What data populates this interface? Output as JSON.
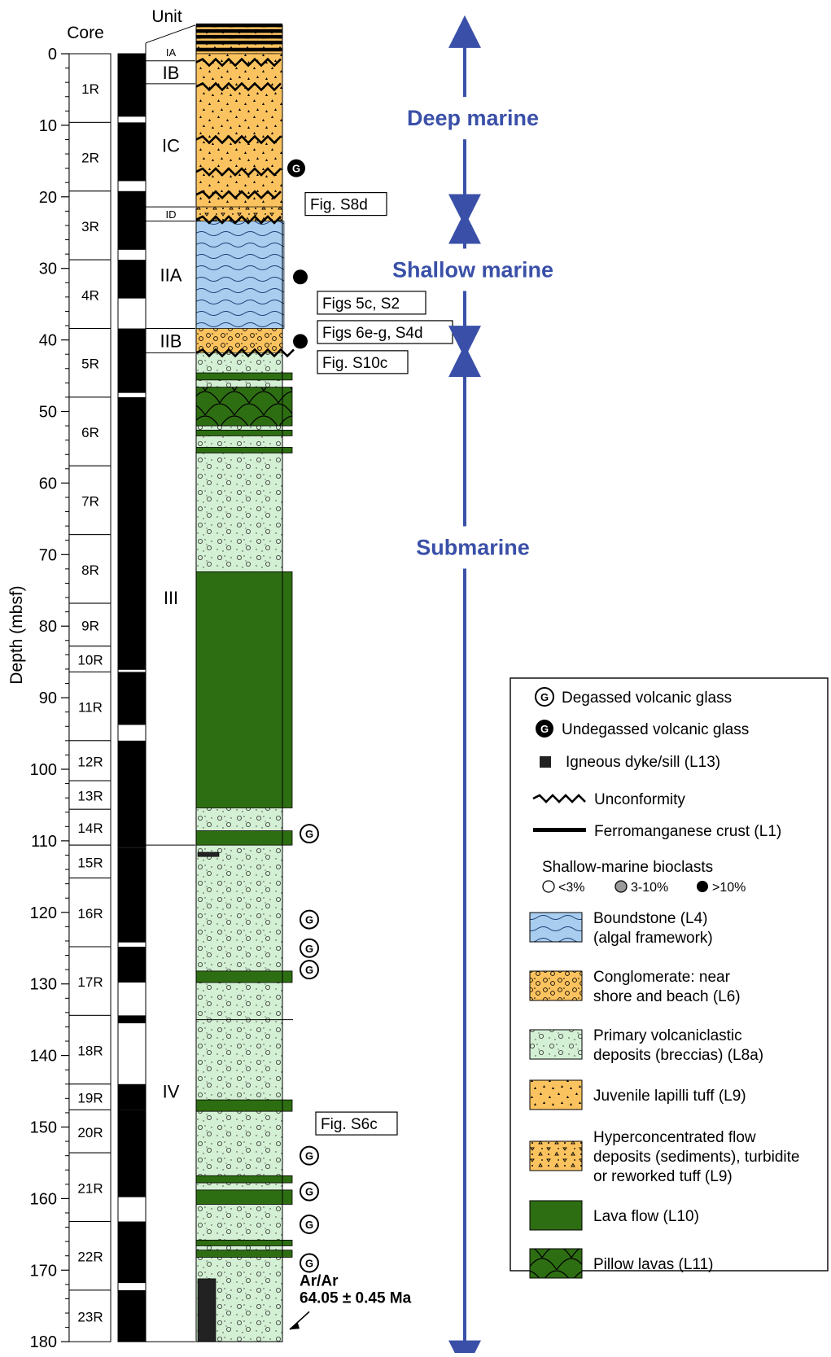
{
  "headers": {
    "core": "Core",
    "unit": "Unit",
    "depth_axis": "Depth (mbsf)"
  },
  "depth_ticks": [
    "0",
    "10",
    "20",
    "30",
    "40",
    "50",
    "60",
    "70",
    "80",
    "90",
    "100",
    "110",
    "120",
    "130",
    "140",
    "150",
    "160",
    "170",
    "180"
  ],
  "cores": [
    {
      "label": "1R",
      "top": 0,
      "bottom": 9.6
    },
    {
      "label": "2R",
      "top": 9.6,
      "bottom": 19.2
    },
    {
      "label": "3R",
      "top": 19.2,
      "bottom": 28.8
    },
    {
      "label": "4R",
      "top": 28.8,
      "bottom": 38.4
    },
    {
      "label": "5R",
      "top": 38.4,
      "bottom": 48
    },
    {
      "label": "6R",
      "top": 48,
      "bottom": 57.6
    },
    {
      "label": "7R",
      "top": 57.6,
      "bottom": 67.2
    },
    {
      "label": "8R",
      "top": 67.2,
      "bottom": 76.8
    },
    {
      "label": "9R",
      "top": 76.8,
      "bottom": 82.8
    },
    {
      "label": "10R",
      "top": 82.8,
      "bottom": 86.4
    },
    {
      "label": "11R",
      "top": 86.4,
      "bottom": 96
    },
    {
      "label": "12R",
      "top": 96,
      "bottom": 101.6
    },
    {
      "label": "13R",
      "top": 101.6,
      "bottom": 105.6
    },
    {
      "label": "14R",
      "top": 105.6,
      "bottom": 110.6
    },
    {
      "label": "15R",
      "top": 110.6,
      "bottom": 115.2
    },
    {
      "label": "16R",
      "top": 115.2,
      "bottom": 124.8
    },
    {
      "label": "17R",
      "top": 124.8,
      "bottom": 134.4
    },
    {
      "label": "18R",
      "top": 134.4,
      "bottom": 144
    },
    {
      "label": "19R",
      "top": 144,
      "bottom": 147.6
    },
    {
      "label": "20R",
      "top": 147.6,
      "bottom": 153.6
    },
    {
      "label": "21R",
      "top": 153.6,
      "bottom": 163.2
    },
    {
      "label": "22R",
      "top": 163.2,
      "bottom": 172.8
    },
    {
      "label": "23R",
      "top": 172.8,
      "bottom": 180
    }
  ],
  "recovery": [
    {
      "top": 0,
      "bottom": 8.8
    },
    {
      "top": 9.6,
      "bottom": 17.8
    },
    {
      "top": 19.2,
      "bottom": 27.4
    },
    {
      "top": 28.8,
      "bottom": 34.2
    },
    {
      "top": 38.4,
      "bottom": 47.4
    },
    {
      "top": 48,
      "bottom": 86.1
    },
    {
      "top": 86.4,
      "bottom": 93.8
    },
    {
      "top": 96,
      "bottom": 111
    },
    {
      "top": 111,
      "bottom": 124.2
    },
    {
      "top": 124.8,
      "bottom": 129.8
    },
    {
      "top": 134.4,
      "bottom": 135.5
    },
    {
      "top": 144,
      "bottom": 147.6
    },
    {
      "top": 147.6,
      "bottom": 159.8
    },
    {
      "top": 163.2,
      "bottom": 171.8
    },
    {
      "top": 172.8,
      "bottom": 180
    }
  ],
  "units": [
    {
      "label": "IA",
      "top": -1.5,
      "bottom": 1
    },
    {
      "label": "IB",
      "top": 1,
      "bottom": 4.2
    },
    {
      "label": "IC",
      "top": 4.2,
      "bottom": 21.4
    },
    {
      "label": "ID",
      "top": 21.4,
      "bottom": 23.4
    },
    {
      "label": "IIA",
      "top": 23.4,
      "bottom": 38.4
    },
    {
      "label": "IIB",
      "top": 38.4,
      "bottom": 41.8
    },
    {
      "label": "III",
      "top": 41.8,
      "bottom": 110.6
    },
    {
      "label": "IV",
      "top": 110.6,
      "bottom": 180
    }
  ],
  "lithology": [
    {
      "type": "hyper",
      "top": -4,
      "bottom": 0
    },
    {
      "type": "lapilli",
      "top": 0,
      "bottom": 21.4
    },
    {
      "type": "hyper",
      "top": 21.4,
      "bottom": 23.4
    },
    {
      "type": "boundstone",
      "top": 23.4,
      "bottom": 38.4
    },
    {
      "type": "conglomerate",
      "top": 38.4,
      "bottom": 41.8
    },
    {
      "type": "breccia",
      "top": 41.8,
      "bottom": 180
    },
    {
      "type": "lava",
      "top": 44.6,
      "bottom": 45.6
    },
    {
      "type": "pillow",
      "top": 46.6,
      "bottom": 52
    },
    {
      "type": "lava",
      "top": 52.6,
      "bottom": 53.4
    },
    {
      "type": "lava",
      "top": 55,
      "bottom": 55.8
    },
    {
      "type": "lava",
      "top": 72.4,
      "bottom": 105.4
    },
    {
      "type": "lava",
      "top": 108.6,
      "bottom": 110.6
    },
    {
      "type": "lava",
      "top": 128.2,
      "bottom": 129.8
    },
    {
      "type": "lava",
      "top": 146.2,
      "bottom": 147.8
    },
    {
      "type": "lava",
      "top": 156.8,
      "bottom": 157.8
    },
    {
      "type": "lava",
      "top": 158.8,
      "bottom": 160.8
    },
    {
      "type": "lava",
      "top": 165.8,
      "bottom": 166.6
    },
    {
      "type": "lava",
      "top": 167.2,
      "bottom": 168.2
    }
  ],
  "crusts": [
    -4,
    -3.2,
    -2.4,
    -1.6,
    -0.6
  ],
  "dykes": [
    {
      "top": 111.6,
      "bottom": 112.2
    },
    {
      "top": 171.2,
      "bottom": 180
    }
  ],
  "unconformities": [
    1.2,
    4.6,
    12,
    16.5,
    19.7,
    23.2,
    41.8
  ],
  "glass_markers": [
    {
      "depth": 16,
      "kind": "undegassed"
    },
    {
      "depth": 109,
      "kind": "degassed"
    },
    {
      "depth": 121,
      "kind": "degassed"
    },
    {
      "depth": 125,
      "kind": "degassed"
    },
    {
      "depth": 128,
      "kind": "degassed"
    },
    {
      "depth": 154,
      "kind": "degassed"
    },
    {
      "depth": 159,
      "kind": "degassed"
    },
    {
      "depth": 163.6,
      "kind": "degassed"
    },
    {
      "depth": 169,
      "kind": "degassed"
    }
  ],
  "bioclast_markers": [
    {
      "depth": 31.2,
      "level": ">10%"
    },
    {
      "depth": 40.2,
      "level": ">10%"
    }
  ],
  "figure_refs": [
    {
      "label": "Fig. S8d",
      "depth": 21
    },
    {
      "label": "Figs 5c, S2",
      "depth": 34.8
    },
    {
      "label": "Figs 6e-g, S4d",
      "depth": 38.9
    },
    {
      "label": "Fig. S10c",
      "depth": 43.1
    },
    {
      "label": "Fig. S6c",
      "depth": 149.5
    }
  ],
  "environments": [
    {
      "label": "Deep marine",
      "top": -4,
      "bottom": 22.8,
      "label_depth": 9
    },
    {
      "label": "Shallow marine",
      "top": 23.4,
      "bottom": 41.2,
      "label_depth": 30.2
    },
    {
      "label": "Submarine",
      "top": 42,
      "bottom": 183,
      "label_depth": 69
    }
  ],
  "age": {
    "line1": "Ar/Ar",
    "line2": "64.05 ± 0.45 Ma"
  },
  "legend": {
    "degassed": "Degassed volcanic glass",
    "undegassed": "Undegassed volcanic glass",
    "dyke": "Igneous dyke/sill (L13)",
    "unconformity": "Unconformity",
    "crust": "Ferromanganese crust (L1)",
    "bioclasts_title": "Shallow-marine bioclasts",
    "bio_low": "<3%",
    "bio_mid": "3-10%",
    "bio_high": ">10%",
    "boundstone": [
      "Boundstone (L4)",
      "(algal framework)"
    ],
    "conglomerate": [
      "Conglomerate: near",
      "shore and beach (L6)"
    ],
    "breccia": [
      "Primary volcaniclastic",
      "deposits (breccias) (L8a)"
    ],
    "lapilli": [
      "Juvenile lapilli tuff (L9)"
    ],
    "hyper": [
      "Hyperconcentrated flow",
      "deposits (sediments), turbidite",
      "or reworked tuff (L9)"
    ],
    "lava": [
      "Lava flow (L10)"
    ],
    "pillow": [
      "Pillow lavas (L11)"
    ]
  },
  "colors": {
    "lapilli": "#fbc35f",
    "boundstone": "#a9cdee",
    "breccia": "#d4f0d4",
    "lava": "#2e6e12",
    "pillow": "#2e6e12",
    "environment": "#3a50a8"
  }
}
